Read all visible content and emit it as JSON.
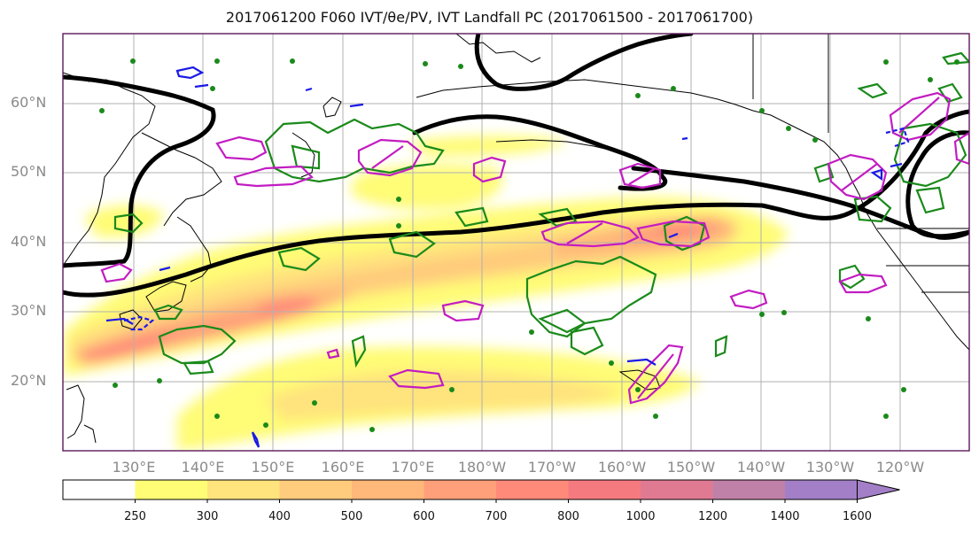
{
  "title": "2017061200 F060 IVT/θe/PV, IVT Landfall PC (2017061500 - 2017061700)",
  "lat_labels": [
    "60°N",
    "50°N",
    "40°N",
    "30°N",
    "20°N"
  ],
  "lon_labels": [
    "130°E",
    "140°E",
    "150°E",
    "160°E",
    "170°E",
    "180°W",
    "170°W",
    "160°W",
    "150°W",
    "140°W",
    "130°W",
    "120°W"
  ],
  "colorbar": {
    "levels": [
      "250",
      "300",
      "400",
      "500",
      "600",
      "700",
      "800",
      "1000",
      "1200",
      "1400",
      "1600"
    ],
    "colors": [
      "#ffffff",
      "#fffc76",
      "#ffe37d",
      "#ffcb7c",
      "#ffb77a",
      "#ffa07a",
      "#ff8a7a",
      "#f57a80",
      "#df7a92",
      "#c081a8",
      "#a27fc6"
    ]
  },
  "colors": {
    "coast": "#000000",
    "pc_contour": "#000000",
    "theta_e": "#1a8a1a",
    "pv": "#c21cc2",
    "blue": "#1a1ae6",
    "grid": "#b0b0b0",
    "frame": "#5a1a5a"
  }
}
